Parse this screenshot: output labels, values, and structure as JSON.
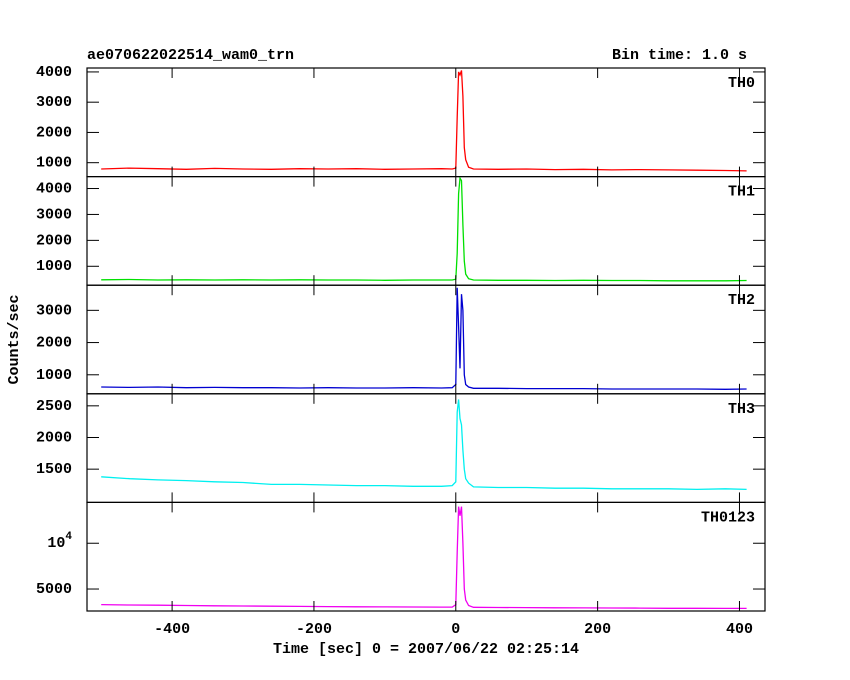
{
  "chart_data": [
    {
      "type": "line",
      "title": "ae070622022514_wam0_trn",
      "subtitle": "Bin time: 1.0 s",
      "label": "TH0",
      "color": "#ff0000",
      "x": [
        -500,
        -460,
        -420,
        -380,
        -340,
        -300,
        -260,
        -220,
        -180,
        -140,
        -100,
        -60,
        -20,
        -5,
        0,
        2,
        4,
        6,
        8,
        10,
        12,
        14,
        18,
        25,
        60,
        100,
        140,
        180,
        220,
        260,
        300,
        340,
        380,
        410
      ],
      "values": [
        790,
        820,
        800,
        780,
        810,
        790,
        780,
        800,
        790,
        800,
        780,
        790,
        800,
        790,
        820,
        2500,
        4000,
        3900,
        4050,
        3200,
        1500,
        1100,
        850,
        790,
        780,
        790,
        770,
        780,
        760,
        770,
        760,
        750,
        740,
        730
      ],
      "xlim": [
        -520,
        436
      ],
      "xticks": [
        -400,
        -200,
        0,
        200,
        400
      ],
      "ylim": [
        540,
        4130
      ],
      "yticks": [
        1000,
        2000,
        3000,
        4000
      ]
    },
    {
      "type": "line",
      "label": "TH1",
      "color": "#00e000",
      "x": [
        -500,
        -460,
        -420,
        -380,
        -340,
        -300,
        -260,
        -220,
        -180,
        -140,
        -100,
        -60,
        -20,
        -5,
        0,
        2,
        4,
        6,
        8,
        10,
        12,
        14,
        18,
        25,
        60,
        100,
        140,
        180,
        220,
        260,
        300,
        340,
        380,
        410
      ],
      "values": [
        480,
        490,
        470,
        480,
        470,
        480,
        470,
        480,
        470,
        470,
        460,
        470,
        470,
        470,
        500,
        1500,
        3800,
        4400,
        4300,
        2600,
        1200,
        700,
        520,
        470,
        460,
        460,
        450,
        460,
        450,
        450,
        440,
        440,
        440,
        450
      ],
      "xlim": [
        -520,
        436
      ],
      "xticks": [
        -400,
        -200,
        0,
        200,
        400
      ],
      "ylim": [
        270,
        4460
      ],
      "yticks": [
        1000,
        2000,
        3000,
        4000
      ]
    },
    {
      "type": "line",
      "label": "TH2",
      "color": "#0000d0",
      "y_label": "Counts/sec",
      "x": [
        -500,
        -460,
        -420,
        -380,
        -340,
        -300,
        -260,
        -220,
        -180,
        -140,
        -100,
        -60,
        -20,
        -5,
        0,
        2,
        4,
        6,
        8,
        10,
        12,
        14,
        18,
        25,
        60,
        100,
        140,
        180,
        220,
        260,
        300,
        340,
        380,
        410
      ],
      "values": [
        620,
        610,
        620,
        600,
        610,
        600,
        600,
        590,
        600,
        590,
        590,
        600,
        590,
        600,
        700,
        3700,
        2500,
        1200,
        3500,
        3000,
        1000,
        700,
        620,
        580,
        580,
        570,
        570,
        570,
        560,
        560,
        560,
        560,
        550,
        560
      ],
      "xlim": [
        -520,
        436
      ],
      "xticks": [
        -400,
        -200,
        0,
        200,
        400
      ],
      "ylim": [
        410,
        3780
      ],
      "yticks": [
        1000,
        2000,
        3000
      ]
    },
    {
      "type": "line",
      "label": "TH3",
      "color": "#00f0f0",
      "x": [
        -500,
        -460,
        -420,
        -380,
        -340,
        -300,
        -260,
        -220,
        -180,
        -140,
        -100,
        -60,
        -20,
        -5,
        0,
        2,
        4,
        6,
        8,
        10,
        12,
        14,
        18,
        25,
        60,
        100,
        140,
        180,
        220,
        260,
        300,
        340,
        380,
        410
      ],
      "values": [
        1380,
        1350,
        1330,
        1320,
        1300,
        1290,
        1260,
        1260,
        1250,
        1240,
        1240,
        1230,
        1230,
        1240,
        1300,
        2400,
        2600,
        2300,
        2200,
        1800,
        1500,
        1350,
        1280,
        1220,
        1210,
        1210,
        1200,
        1200,
        1190,
        1190,
        1190,
        1180,
        1190,
        1180
      ],
      "xlim": [
        -520,
        436
      ],
      "xticks": [
        -400,
        -200,
        0,
        200,
        400
      ],
      "ylim": [
        975,
        2690
      ],
      "yticks": [
        1500,
        2000,
        2500
      ]
    },
    {
      "type": "line",
      "label": "TH0123",
      "color": "#f000f0",
      "x_label": "Time [sec] 0 = 2007/06/22 02:25:14",
      "x": [
        -500,
        -460,
        -420,
        -380,
        -340,
        -300,
        -260,
        -220,
        -180,
        -140,
        -100,
        -60,
        -20,
        -5,
        0,
        2,
        4,
        6,
        8,
        10,
        12,
        14,
        18,
        25,
        60,
        100,
        140,
        180,
        220,
        260,
        300,
        340,
        380,
        410
      ],
      "values": [
        3300,
        3250,
        3230,
        3200,
        3170,
        3150,
        3120,
        3100,
        3080,
        3060,
        3050,
        3040,
        3030,
        3030,
        3300,
        9000,
        14000,
        13000,
        14000,
        10000,
        5000,
        3800,
        3200,
        3000,
        2980,
        2970,
        2950,
        2940,
        2930,
        2920,
        2900,
        2890,
        2880,
        2880
      ],
      "xlim": [
        -520,
        436
      ],
      "xticks": [
        -400,
        -200,
        0,
        200,
        400
      ],
      "ylim": [
        2600,
        14460
      ],
      "yticks": [
        5000,
        {
          "value": 10000,
          "label": "10^4"
        }
      ]
    }
  ]
}
